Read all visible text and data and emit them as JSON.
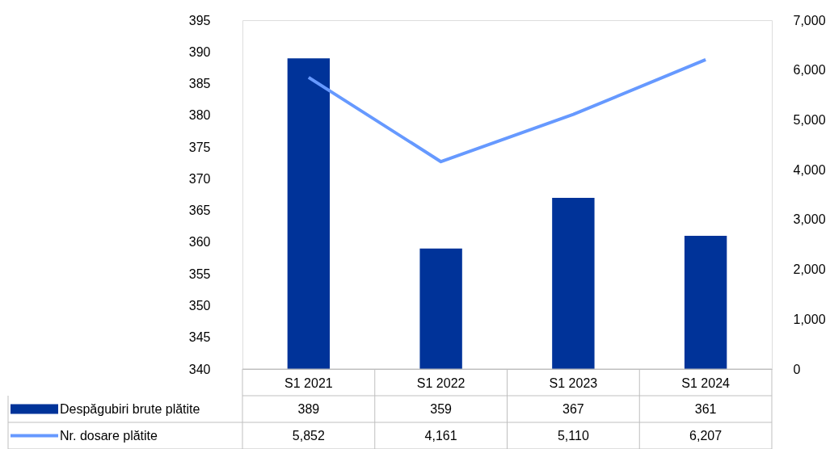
{
  "chart_data": {
    "type": "bar",
    "categories": [
      "S1 2021",
      "S1 2022",
      "S1 2023",
      "S1 2024"
    ],
    "series": [
      {
        "name": "Despăgubiri brute plătite",
        "color": "#003399",
        "values": [
          389,
          359,
          367,
          361
        ],
        "value_labels": [
          "389",
          "359",
          "367",
          "361"
        ]
      },
      {
        "name": "Nr. dosare plătite",
        "type": "line",
        "axis": "y2",
        "color": "#6699ff",
        "values": [
          5852,
          4161,
          5110,
          6207
        ],
        "value_labels": [
          "5,852",
          "4,161",
          "5,110",
          "6,207"
        ]
      }
    ],
    "ylim": [
      340,
      395
    ],
    "yticks": [
      340,
      345,
      350,
      355,
      360,
      365,
      370,
      375,
      380,
      385,
      390,
      395
    ],
    "y2lim": [
      0,
      7000
    ],
    "y2ticks": [
      {
        "value": 0,
        "label": "0"
      },
      {
        "value": 1000,
        "label": "1,000"
      },
      {
        "value": 2000,
        "label": "2,000"
      },
      {
        "value": 3000,
        "label": "3,000"
      },
      {
        "value": 4000,
        "label": "4,000"
      },
      {
        "value": 5000,
        "label": "5,000"
      },
      {
        "value": 6000,
        "label": "6,000"
      },
      {
        "value": 7000,
        "label": "7,000"
      }
    ],
    "legend": "bottom left",
    "grid": false
  }
}
